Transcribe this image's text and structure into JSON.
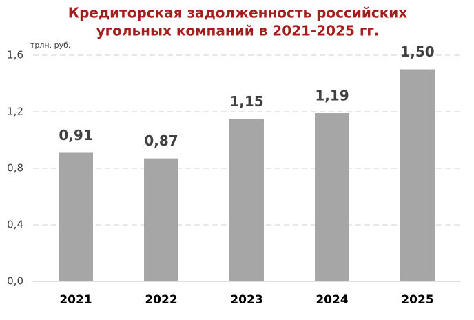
{
  "chart_data": {
    "type": "bar",
    "title": [
      "Кредиторская задолженность российских",
      "угольных компаний в 2021-2025 гг."
    ],
    "y_label": "трлн. руб.",
    "categories": [
      "2021",
      "2022",
      "2023",
      "2024",
      "2025"
    ],
    "values": [
      0.91,
      0.87,
      1.15,
      1.19,
      1.5
    ],
    "value_labels": [
      "0,91",
      "0,87",
      "1,15",
      "1,19",
      "1,50"
    ],
    "color": "#a6a6a6",
    "ylim": [
      0,
      1.6
    ],
    "yticks": [
      {
        "value": 0,
        "label": "0,0"
      },
      {
        "value": 0.4,
        "label": "0,4"
      },
      {
        "value": 0.8,
        "label": "0,8"
      },
      {
        "value": 1.2,
        "label": "1,2"
      },
      {
        "value": 1.6,
        "label": "1,6"
      }
    ],
    "grid": true
  }
}
